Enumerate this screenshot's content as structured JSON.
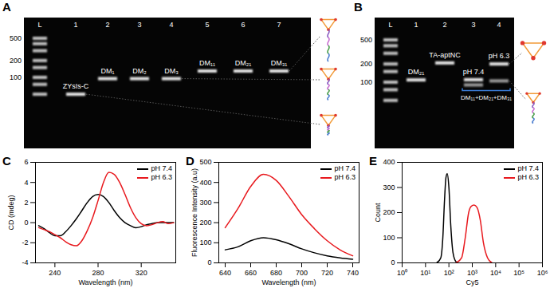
{
  "gels": [
    {
      "panel": "A",
      "ladder_labels": [
        500,
        200,
        100
      ],
      "lanes": [
        {
          "label": "L",
          "bands": [
            500,
            400,
            300,
            200,
            150,
            100,
            75,
            50
          ]
        },
        {
          "label": "1",
          "band_label": "ZYsIs-C",
          "bands": [
            50
          ]
        },
        {
          "label": "2",
          "band_label": "DM₁",
          "bands": [
            95
          ]
        },
        {
          "label": "3",
          "band_label": "DM₂",
          "bands": [
            95
          ]
        },
        {
          "label": "4",
          "band_label": "DM₃",
          "bands": [
            95
          ]
        },
        {
          "label": "5",
          "band_label": "DM₁₁",
          "bands": [
            130
          ]
        },
        {
          "label": "6",
          "band_label": "DM₂₁",
          "bands": [
            130
          ]
        },
        {
          "label": "7",
          "band_label": "DM₃₁",
          "bands": [
            130
          ]
        }
      ]
    },
    {
      "panel": "B",
      "ladder_labels": [
        500,
        200,
        100
      ],
      "annotation": "DM₁₁+DM₂₁+DM₃₁",
      "lanes": [
        {
          "label": "L",
          "bands": [
            500,
            400,
            300,
            200,
            150,
            100,
            75,
            50
          ]
        },
        {
          "label": "1",
          "band_label": "DM₂₁",
          "bands": [
            109
          ]
        },
        {
          "label": "2",
          "band_label": "TA-aptNC",
          "bands": [
            208
          ]
        },
        {
          "label": "3",
          "band_label": "pH 7.4",
          "bands": [
            110,
            90
          ]
        },
        {
          "label": "4",
          "band_label": "pH 6.3",
          "bands": [
            200,
            105
          ]
        }
      ]
    }
  ],
  "chart_data": [
    {
      "panel": "C",
      "type": "line",
      "x_label": "Wavelength (nm)",
      "y_label": "CD (mdeg)",
      "x": [
        225,
        230,
        235,
        240,
        245,
        250,
        255,
        260,
        265,
        270,
        275,
        280,
        285,
        290,
        295,
        300,
        305,
        310,
        315,
        320,
        325,
        330,
        335,
        340,
        345,
        350
      ],
      "series": [
        {
          "name": "pH 7.4",
          "color": "#000000",
          "values": [
            -0.3,
            -0.6,
            -1.0,
            -1.3,
            -1.3,
            -0.9,
            -0.3,
            0.4,
            1.2,
            2.0,
            2.6,
            2.8,
            2.6,
            2.0,
            1.2,
            0.5,
            0.0,
            -0.3,
            -0.5,
            -0.4,
            -0.2,
            -0.1,
            0.0,
            0.0,
            0.0,
            0.0
          ]
        },
        {
          "name": "pH 6.3",
          "color": "#e8191e",
          "values": [
            -0.5,
            -0.7,
            -0.9,
            -1.2,
            -1.5,
            -1.9,
            -2.2,
            -2.3,
            -1.8,
            -0.8,
            0.5,
            2.2,
            4.0,
            5.0,
            4.8,
            4.0,
            2.8,
            1.5,
            0.5,
            -0.1,
            -0.3,
            -0.2,
            0.0,
            0.1,
            -0.1,
            0.0
          ]
        }
      ],
      "xlim": [
        222,
        352
      ],
      "xticks": [
        240,
        280,
        320
      ],
      "ylim": [
        -4,
        6
      ],
      "yticks": [
        -4,
        -2,
        0,
        2,
        4,
        6
      ],
      "legend": "top-right",
      "grid": false
    },
    {
      "panel": "D",
      "type": "line",
      "x_label": "Wavelength (nm)",
      "y_label": "Fluorescence Intensity (a.u)",
      "x": [
        640,
        650,
        660,
        670,
        680,
        690,
        700,
        710,
        720,
        730,
        740
      ],
      "series": [
        {
          "name": "pH 7.4",
          "color": "#000000",
          "values": [
            65,
            80,
            110,
            125,
            115,
            95,
            70,
            50,
            35,
            25,
            18
          ]
        },
        {
          "name": "pH 6.3",
          "color": "#e8191e",
          "values": [
            175,
            270,
            380,
            440,
            410,
            330,
            240,
            170,
            110,
            65,
            35
          ]
        }
      ],
      "xlim": [
        635,
        745
      ],
      "xticks": [
        640,
        660,
        680,
        700,
        720,
        740
      ],
      "ylim": [
        0,
        500
      ],
      "yticks": [
        0,
        100,
        200,
        300,
        400,
        500
      ],
      "legend": "top-right",
      "grid": false
    },
    {
      "panel": "E",
      "type": "line",
      "x_label": "Cy5",
      "y_label": "Count",
      "log": "x",
      "series": [
        {
          "name": "pH 7.4",
          "color": "#000000",
          "x": [
            30,
            45,
            55,
            65,
            75,
            85,
            100,
            120,
            150,
            200,
            250
          ],
          "values": [
            0,
            20,
            100,
            250,
            340,
            355,
            300,
            150,
            40,
            5,
            0
          ]
        },
        {
          "name": "pH 6.3",
          "color": "#e8191e",
          "x": [
            200,
            350,
            500,
            700,
            900,
            1200,
            1600,
            2200,
            3000,
            4500,
            7000
          ],
          "values": [
            0,
            20,
            100,
            200,
            225,
            230,
            220,
            170,
            80,
            20,
            0
          ]
        }
      ],
      "xlim": [
        1,
        1000000
      ],
      "xticks": [
        {
          "value": 1,
          "label": "10⁰"
        },
        {
          "value": 10,
          "label": "10¹"
        },
        {
          "value": 100,
          "label": "10²"
        },
        {
          "value": 1000,
          "label": "10³"
        },
        {
          "value": 10000,
          "label": "10⁴"
        },
        {
          "value": 100000,
          "label": "10⁵"
        },
        {
          "value": 1000000,
          "label": "10⁶"
        }
      ],
      "ylim": [
        0,
        400
      ],
      "yticks": [
        0,
        100,
        200,
        300,
        400
      ],
      "legend": "top-right",
      "grid": false
    }
  ]
}
